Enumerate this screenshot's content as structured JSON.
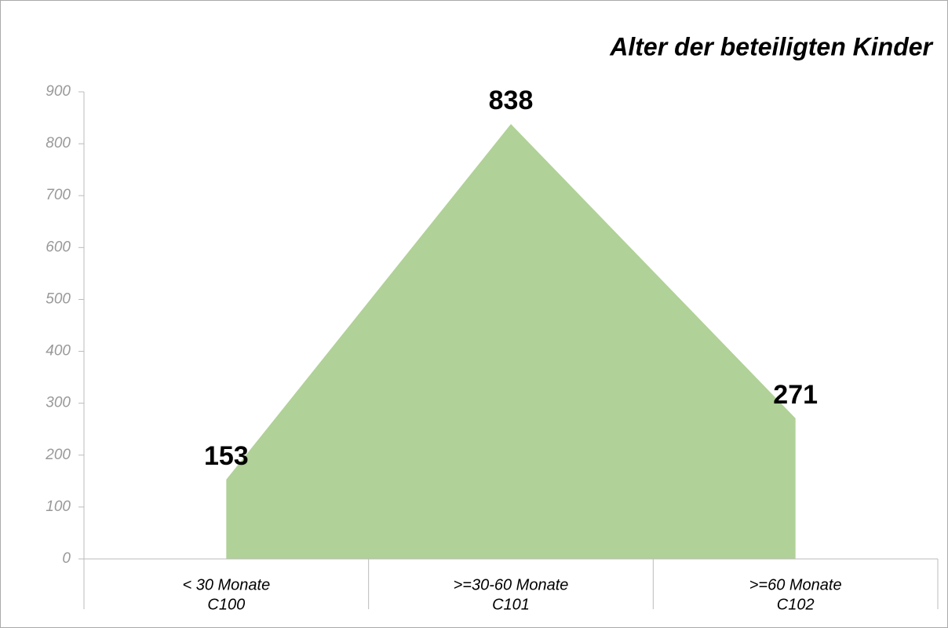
{
  "chart_data": {
    "type": "area",
    "title": "Alter der beteiligten Kinder",
    "categories": [
      [
        "< 30 Monate",
        "C100"
      ],
      [
        ">=30-60 Monate",
        "C101"
      ],
      [
        ">=60 Monate",
        "C102"
      ]
    ],
    "values": [
      153,
      838,
      271
    ],
    "color": "#b0d197",
    "ylim": [
      0,
      900
    ],
    "yticks": [
      0,
      100,
      200,
      300,
      400,
      500,
      600,
      700,
      800,
      900
    ],
    "grid": false
  }
}
